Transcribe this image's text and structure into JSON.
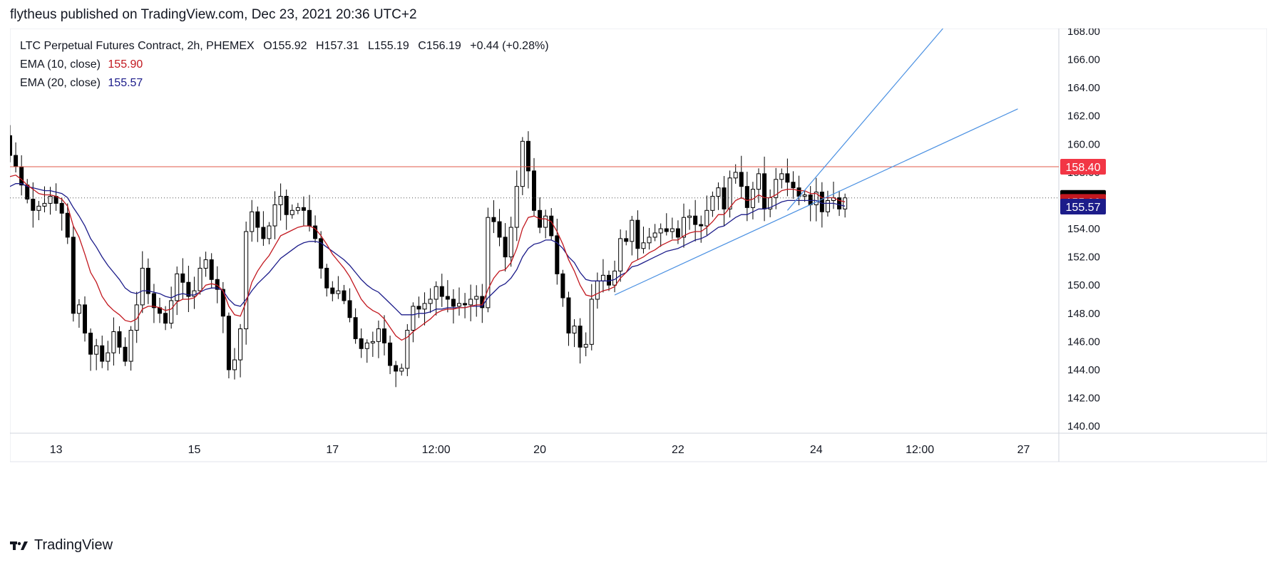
{
  "header": {
    "published": "flytheus published on TradingView.com, Dec 23, 2021 20:36 UTC+2"
  },
  "legend": {
    "symbol": "LTC Perpetual Futures Contract, 2h, PHEMEX",
    "ohlc": {
      "O": "155.92",
      "H": "157.31",
      "L": "155.19",
      "C": "156.19",
      "change": "+0.44 (+0.28%)"
    },
    "ema10": {
      "label": "EMA (10, close)",
      "value": "155.90",
      "color": "#c2181f"
    },
    "ema20": {
      "label": "EMA (20, close)",
      "value": "155.57",
      "color": "#1c1c8a"
    }
  },
  "footer": {
    "brand": "TradingView"
  },
  "chart_data": {
    "type": "candlestick",
    "colors": {
      "up": "#ffffff",
      "down": "#000000",
      "outline": "#000000",
      "grid": "#e0e3eb",
      "trend": "#4a90e2",
      "resistance": "#e05a4a",
      "price": "#000000"
    },
    "ylim": [
      139.5,
      168.2
    ],
    "y_ticks": [
      "140.00",
      "142.00",
      "144.00",
      "146.00",
      "148.00",
      "150.00",
      "152.00",
      "154.00",
      "156.00",
      "158.00",
      "160.00",
      "162.00",
      "164.00",
      "166.00",
      "168.00"
    ],
    "x_ticks": [
      {
        "label": "13",
        "bar": 15
      },
      {
        "label": "15",
        "bar": 39
      },
      {
        "label": "17",
        "bar": 63
      },
      {
        "label": "12:00",
        "bar": 81
      },
      {
        "label": "20",
        "bar": 99
      },
      {
        "label": "22",
        "bar": 123
      },
      {
        "label": "24",
        "bar": 147
      },
      {
        "label": "12:00",
        "bar": 165
      },
      {
        "label": "27",
        "bar": 183
      }
    ],
    "x_range_bars": [
      7,
      189
    ],
    "resistance_level": 158.4,
    "current_price": 156.19,
    "price_labels": [
      {
        "value": "158.40",
        "price": 158.4,
        "bg": "#f23645",
        "fg": "#ffffff"
      },
      {
        "value": "156.19",
        "price": 156.19,
        "bg": "#000000",
        "fg": "#ffffff"
      },
      {
        "value": "155.90",
        "price": 155.9,
        "bg": "#c2181f",
        "fg": "#ffffff"
      },
      {
        "value": "155.57",
        "price": 155.57,
        "bg": "#1c1c8a",
        "fg": "#ffffff"
      }
    ],
    "trendlines": [
      {
        "from": [
          112,
          149.3
        ],
        "to": [
          182,
          162.5
        ]
      },
      {
        "from": [
          142,
          155.3
        ],
        "to": [
          169,
          168.2
        ]
      }
    ],
    "closes": [
      156.2,
      155.0,
      156.8,
      157.6,
      158.0,
      159.5,
      160.6,
      159.2,
      158.4,
      157.1,
      156.1,
      155.3,
      155.6,
      155.8,
      156.3,
      155.8,
      155.1,
      153.4,
      148.0,
      148.6,
      146.6,
      145.1,
      145.7,
      144.6,
      145.2,
      146.7,
      145.6,
      144.6,
      146.8,
      148.6,
      151.2,
      149.4,
      148.4,
      148.0,
      147.3,
      148.9,
      150.8,
      150.2,
      149.2,
      149.6,
      151.2,
      151.8,
      150.4,
      149.7,
      147.8,
      144.0,
      144.7,
      146.9,
      153.8,
      155.2,
      154.1,
      153.3,
      154.2,
      155.7,
      156.3,
      155.0,
      155.3,
      155.5,
      155.3,
      154.2,
      153.3,
      151.2,
      149.8,
      149.4,
      149.6,
      148.9,
      147.7,
      146.2,
      145.5,
      145.9,
      146.0,
      146.9,
      145.9,
      144.3,
      143.9,
      144.1,
      146.8,
      148.5,
      148.3,
      148.7,
      149.0,
      149.9,
      149.2,
      149.0,
      148.5,
      148.7,
      148.6,
      149.0,
      149.2,
      148.4,
      154.8,
      154.5,
      153.4,
      152.0,
      154.1,
      157.0,
      160.2,
      158.1,
      155.3,
      154.1,
      154.9,
      153.5,
      150.8,
      149.1,
      146.6,
      147.1,
      145.6,
      145.8,
      149.0,
      150.3,
      150.7,
      150.0,
      151.0,
      153.3,
      153.1,
      154.6,
      152.6,
      153.0,
      153.4,
      153.7,
      154.0,
      153.8,
      154.0,
      153.4,
      154.8,
      154.9,
      154.3,
      154.2,
      155.3,
      156.3,
      156.9,
      155.4,
      157.6,
      158.0,
      157.0,
      155.5,
      156.8,
      157.9,
      155.4,
      156.2,
      157.5,
      157.9,
      157.3,
      156.9,
      156.3,
      156.4,
      155.7,
      156.6,
      155.2,
      156.0,
      156.2,
      155.4,
      156.19
    ],
    "ema10": [
      156.0,
      155.6,
      155.7,
      155.9,
      156.2,
      156.7,
      157.4,
      157.7,
      157.8,
      157.5,
      157.1,
      156.8,
      156.5,
      156.4,
      156.4,
      156.3,
      156.1,
      155.6,
      154.2,
      153.4,
      152.2,
      150.9,
      150.2,
      149.2,
      148.6,
      148.2,
      147.9,
      147.5,
      147.4,
      147.6,
      148.3,
      148.5,
      148.5,
      148.4,
      148.2,
      148.3,
      148.8,
      149.0,
      149.0,
      149.1,
      149.5,
      150.0,
      150.1,
      150.0,
      149.6,
      148.5,
      147.9,
      147.8,
      148.8,
      150.2,
      151.0,
      151.6,
      152.1,
      152.8,
      153.5,
      153.7,
      153.9,
      154.1,
      154.2,
      154.2,
      154.0,
      153.5,
      152.9,
      152.2,
      151.7,
      151.2,
      150.6,
      149.8,
      149.0,
      148.5,
      148.2,
      148.0,
      147.6,
      147.0,
      146.4,
      146.1,
      146.3,
      146.7,
      147.0,
      147.3,
      147.6,
      148.0,
      148.2,
      148.3,
      148.3,
      148.4,
      148.4,
      148.5,
      148.6,
      148.6,
      149.7,
      150.5,
      151.0,
      151.1,
      151.6,
      152.6,
      154.0,
      154.8,
      154.9,
      154.7,
      154.7,
      154.5,
      153.8,
      152.9,
      151.8,
      151.0,
      150.0,
      149.3,
      149.2,
      149.4,
      149.6,
      149.7,
      149.9,
      150.5,
      150.9,
      151.6,
      151.8,
      152.0,
      152.3,
      152.5,
      152.8,
      153.0,
      153.2,
      153.2,
      153.5,
      153.7,
      153.8,
      153.8,
      154.1,
      154.5,
      155.0,
      155.0,
      155.5,
      156.0,
      156.2,
      156.0,
      156.1,
      156.4,
      156.2,
      156.2,
      156.4,
      156.7,
      156.8,
      156.8,
      156.7,
      156.7,
      156.5,
      156.5,
      156.2,
      156.2,
      156.2,
      156.0,
      155.9
    ],
    "ema20": [
      155.8,
      155.7,
      155.8,
      155.9,
      156.1,
      156.4,
      156.8,
      157.0,
      157.2,
      157.2,
      157.0,
      156.9,
      156.8,
      156.7,
      156.7,
      156.6,
      156.5,
      156.2,
      155.5,
      154.9,
      154.2,
      153.3,
      152.7,
      152.0,
      151.4,
      150.9,
      150.4,
      149.8,
      149.5,
      149.4,
      149.6,
      149.6,
      149.5,
      149.4,
      149.2,
      149.1,
      149.3,
      149.4,
      149.3,
      149.3,
      149.5,
      149.7,
      149.8,
      149.8,
      149.6,
      149.0,
      148.6,
      148.5,
      149.0,
      149.6,
      150.1,
      150.5,
      150.9,
      151.4,
      151.9,
      152.2,
      152.5,
      152.8,
      153.0,
      153.1,
      153.1,
      153.0,
      152.7,
      152.4,
      152.1,
      151.8,
      151.4,
      150.9,
      150.4,
      150.0,
      149.7,
      149.5,
      149.1,
      148.7,
      148.3,
      147.9,
      147.9,
      147.9,
      148.0,
      148.0,
      148.1,
      148.3,
      148.3,
      148.4,
      148.4,
      148.4,
      148.4,
      148.5,
      148.5,
      148.5,
      149.1,
      149.5,
      149.9,
      150.1,
      150.5,
      151.1,
      152.0,
      152.6,
      152.9,
      153.0,
      153.2,
      153.2,
      153.0,
      152.6,
      152.0,
      151.6,
      150.9,
      150.4,
      150.3,
      150.3,
      150.3,
      150.3,
      150.4,
      150.7,
      150.9,
      151.3,
      151.4,
      151.6,
      151.8,
      152.0,
      152.2,
      152.4,
      152.5,
      152.6,
      152.8,
      153.0,
      153.2,
      153.3,
      153.5,
      153.8,
      154.1,
      154.2,
      154.5,
      154.8,
      155.0,
      155.0,
      155.2,
      155.4,
      155.4,
      155.5,
      155.7,
      155.9,
      156.0,
      156.0,
      156.0,
      156.0,
      156.0,
      156.0,
      155.8,
      155.8,
      155.8,
      155.7,
      155.6
    ]
  }
}
